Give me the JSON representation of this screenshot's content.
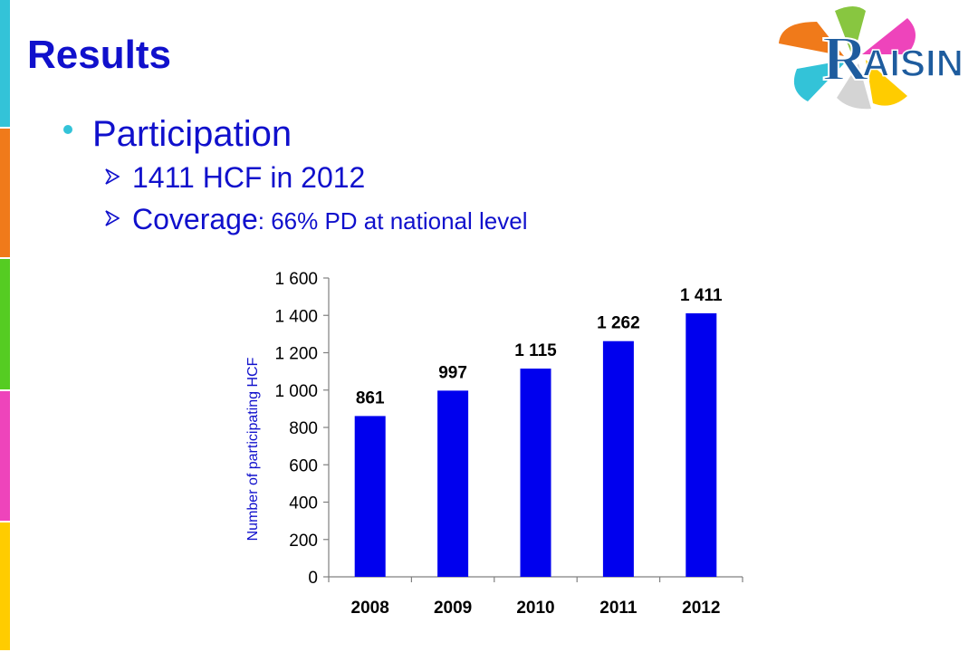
{
  "slide": {
    "title": "Results",
    "bullet": "Participation",
    "sub_bullets": [
      {
        "text": "1411 HCF in 2012",
        "tail": ""
      },
      {
        "text": "Coverage",
        "tail": ": 66% PD at national level"
      }
    ],
    "logo_text": "RAISIN"
  },
  "colors": {
    "accent": "#1010cc",
    "bar": "#0000ee",
    "bullet_dot": "#33c3d8",
    "stripes": [
      "#33c3d8",
      "#f07a1a",
      "#55cc22",
      "#ee44bb",
      "#ffcc00"
    ]
  },
  "chart_data": {
    "type": "bar",
    "categories": [
      "2008",
      "2009",
      "2010",
      "2011",
      "2012"
    ],
    "values": [
      861,
      997,
      1115,
      1262,
      1411
    ],
    "data_labels": [
      "861",
      "997",
      "1 115",
      "1 262",
      "1 411"
    ],
    "ylabel": "Number of participating HCF",
    "xlabel": "",
    "ylim": [
      0,
      1600
    ],
    "yticks": [
      0,
      200,
      400,
      600,
      800,
      1000,
      1200,
      1400,
      1600
    ],
    "ytick_labels": [
      "0",
      "200",
      "400",
      "600",
      "800",
      "1 000",
      "1 200",
      "1 400",
      "1 600"
    ],
    "grid": false,
    "legend": "none"
  }
}
